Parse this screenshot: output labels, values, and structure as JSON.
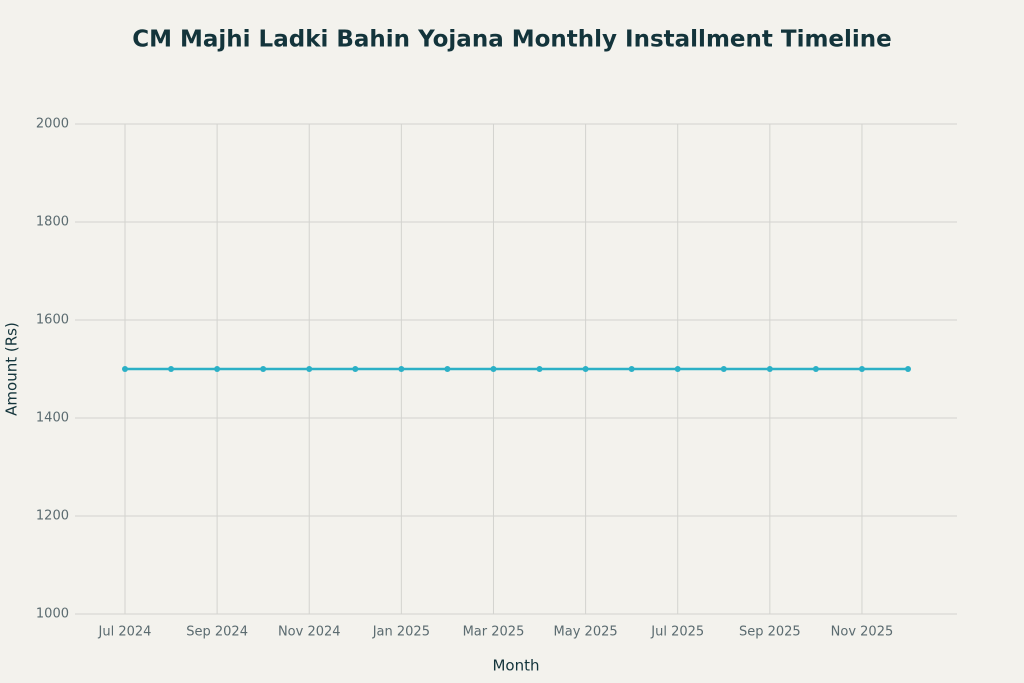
{
  "chart_data": {
    "type": "line",
    "title": "CM Majhi Ladki Bahin Yojana Monthly Installment Timeline",
    "x_label": "Month",
    "y_label": "Amount (Rs)",
    "categories": [
      "Jul 2024",
      null,
      "Sep 2024",
      null,
      "Nov 2024",
      null,
      "Jan 2025",
      null,
      "Mar 2025",
      null,
      "May 2025",
      null,
      "Jul 2025",
      null,
      "Sep 2025",
      null,
      "Nov 2025",
      null
    ],
    "series": [
      {
        "color": "#2bb0c6",
        "values": [
          1500,
          1500,
          1500,
          1500,
          1500,
          1500,
          1500,
          1500,
          1500,
          1500,
          1500,
          1500,
          1500,
          1500,
          1500,
          1500,
          1500,
          1500
        ]
      }
    ],
    "ylim": [
      1000,
      2000
    ],
    "yticks": [
      1000,
      1200,
      1400,
      1600,
      1800,
      2000
    ],
    "grid": true
  }
}
